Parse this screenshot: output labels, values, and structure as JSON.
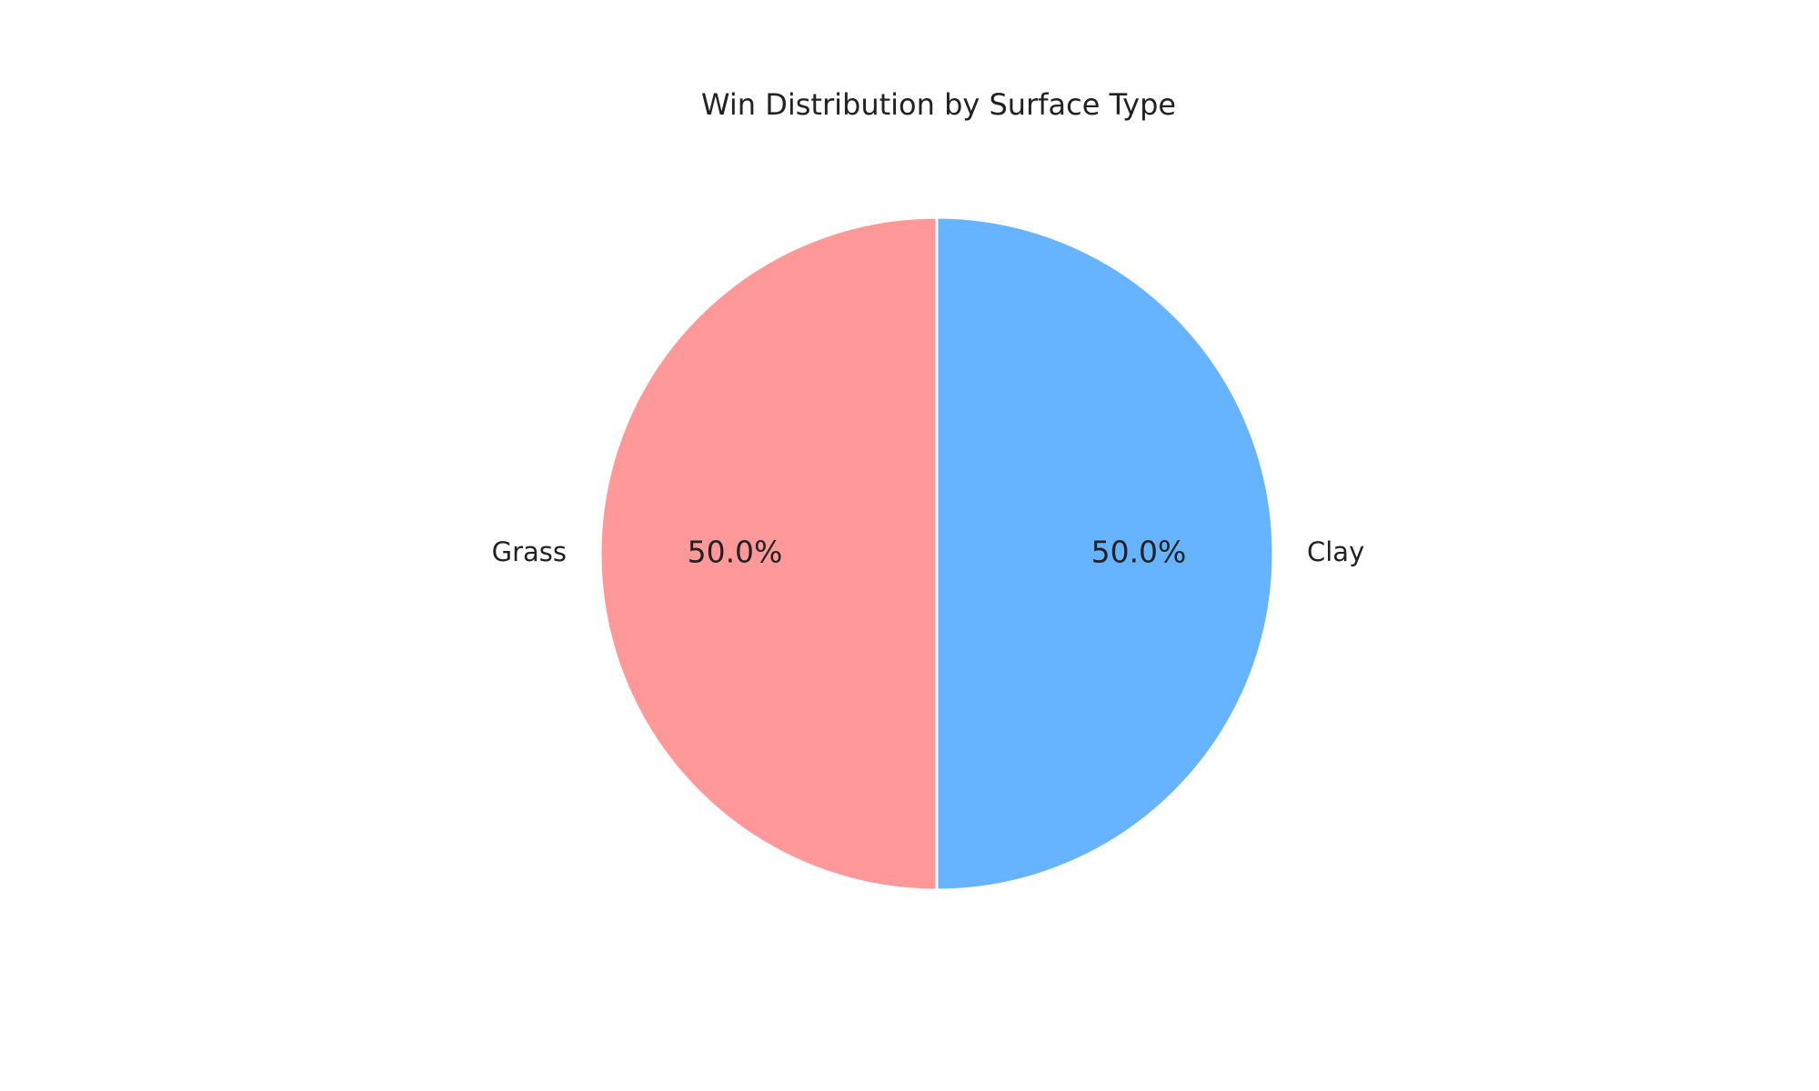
{
  "chart_data": {
    "type": "pie",
    "title": "Win Distribution by Surface Type",
    "categories": [
      "Clay",
      "Grass"
    ],
    "values": [
      50,
      50
    ],
    "percent_labels": [
      "50.0%",
      "50.0%"
    ],
    "colors": [
      "#66b3ff",
      "#ff9999"
    ],
    "start_angle_deg": 90,
    "direction": "clockwise",
    "legend": "none"
  }
}
